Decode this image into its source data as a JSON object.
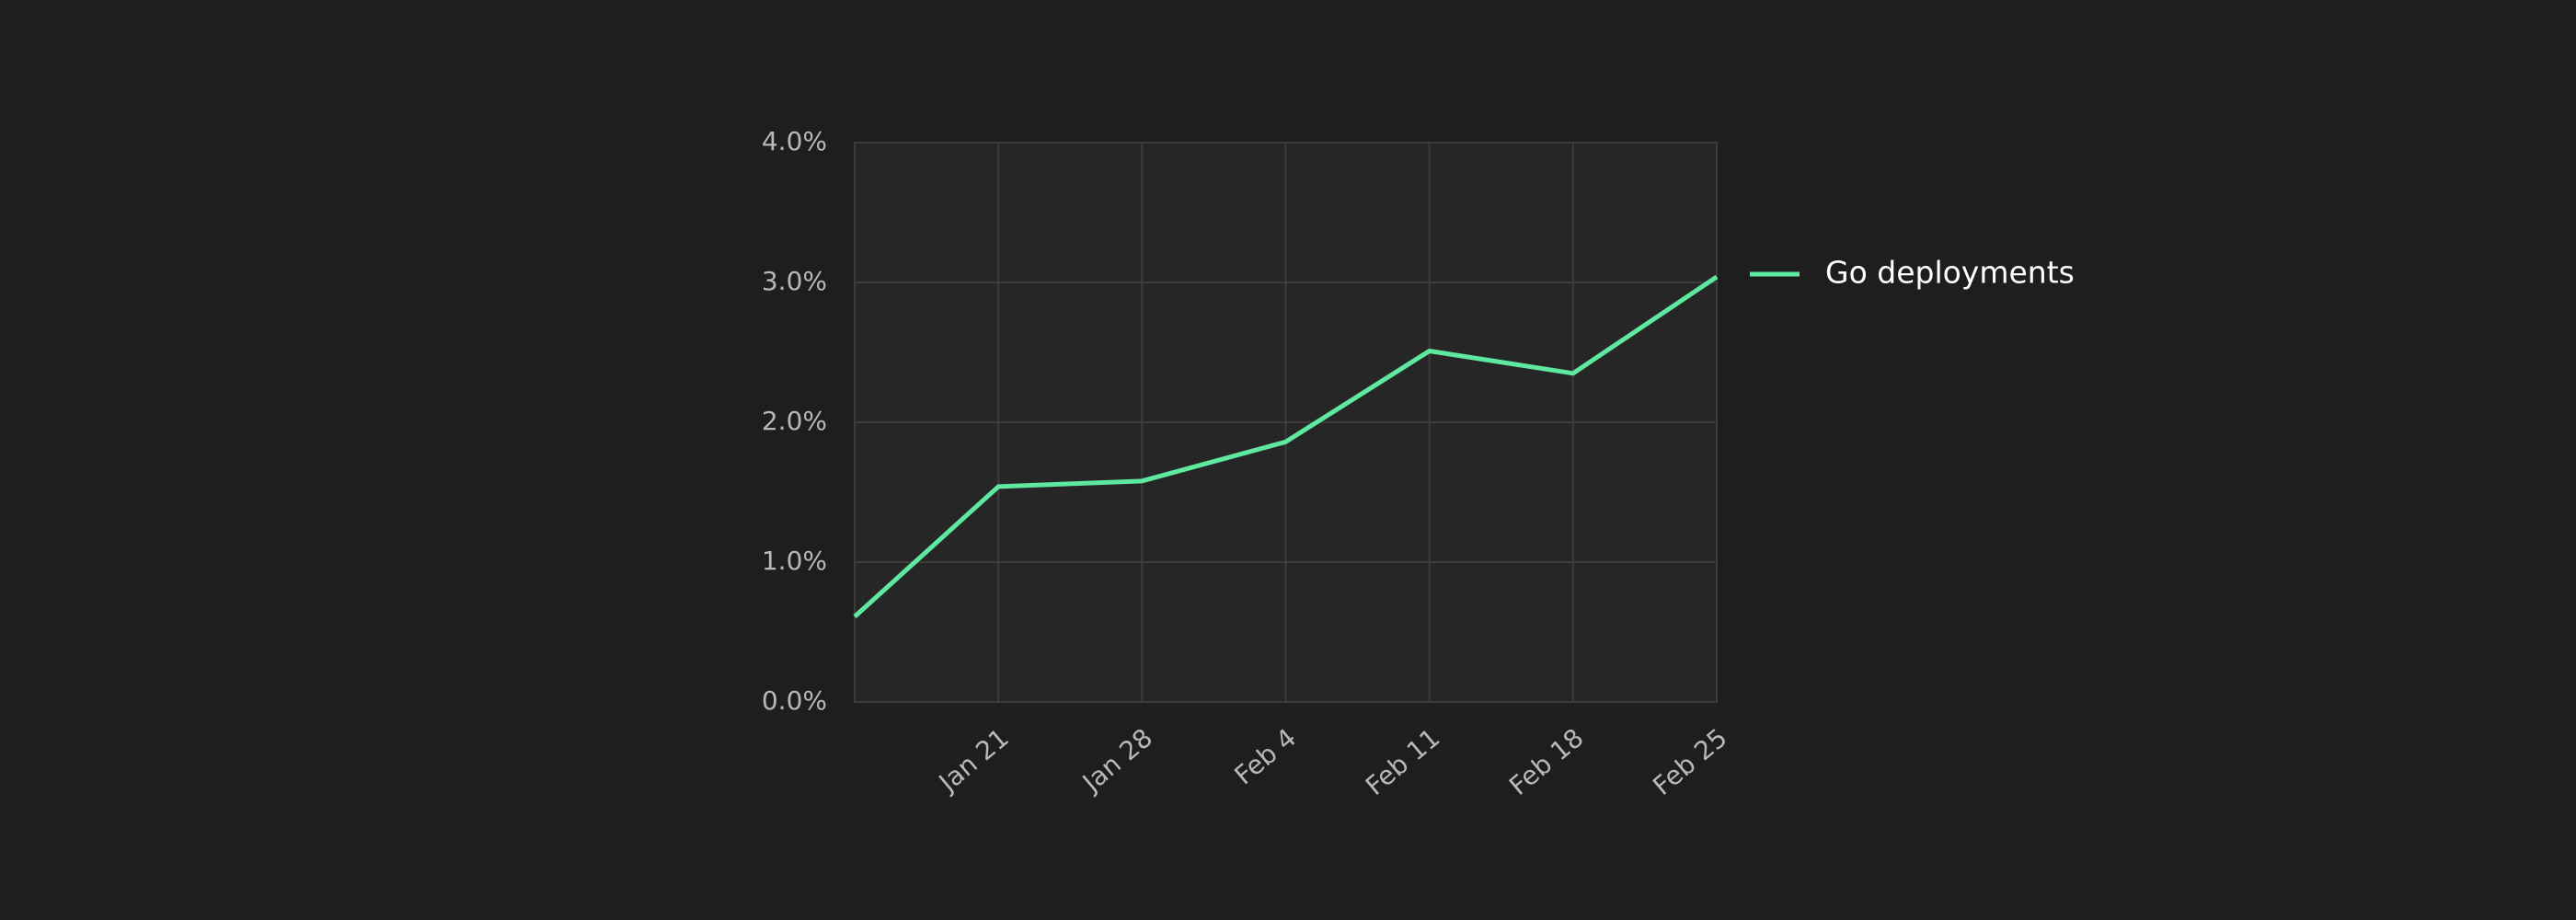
{
  "chart_data": {
    "type": "line",
    "categories": [
      null,
      "Jan 21",
      "Jan 28",
      "Feb 4",
      "Feb 11",
      "Feb 18",
      "Feb 25"
    ],
    "series": [
      {
        "name": "Go deployments",
        "color": "#5ee8a0",
        "values": [
          0.61,
          1.54,
          1.58,
          1.86,
          2.51,
          2.35,
          3.04
        ]
      }
    ],
    "ylim": [
      0,
      4
    ],
    "yticks": [
      {
        "value": 0,
        "label": "0.0%"
      },
      {
        "value": 1,
        "label": "1.0%"
      },
      {
        "value": 2,
        "label": "2.0%"
      },
      {
        "value": 3,
        "label": "3.0%"
      },
      {
        "value": 4,
        "label": "4.0%"
      }
    ],
    "grid": true,
    "legend": "right"
  }
}
